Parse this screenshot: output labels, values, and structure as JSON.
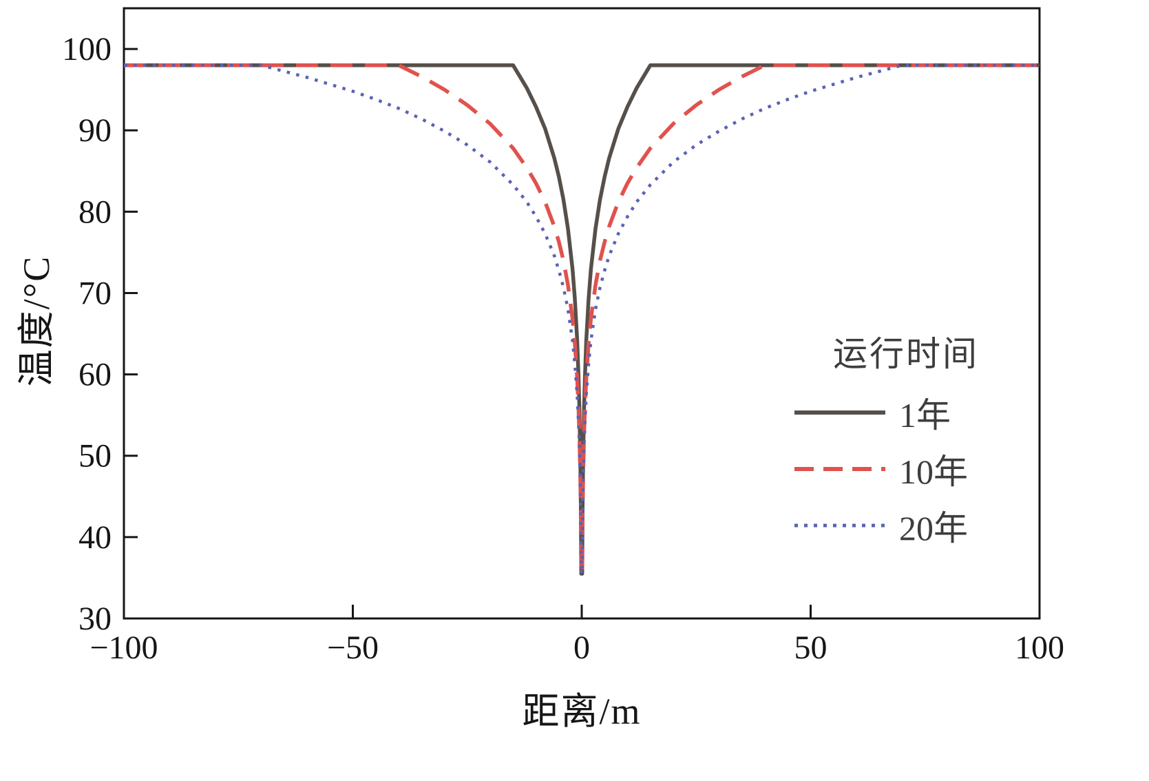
{
  "figure": {
    "background": "#ffffff",
    "frame_color": "#161616"
  },
  "chart_data": {
    "type": "line",
    "title": "",
    "xlabel": "距离/m",
    "ylabel": "温度/°C",
    "xlim": [
      -100,
      100
    ],
    "ylim": [
      30,
      105
    ],
    "grid": false,
    "legend": {
      "title": "运行时间",
      "position": "right-center",
      "entries": [
        "1年",
        "10年",
        "20年"
      ]
    },
    "x_ticks": [
      {
        "v": -100,
        "label": "−100"
      },
      {
        "v": -50,
        "label": "−50"
      },
      {
        "v": 0,
        "label": "0"
      },
      {
        "v": 50,
        "label": "50"
      },
      {
        "v": 100,
        "label": "100"
      }
    ],
    "y_ticks": [
      {
        "v": 30,
        "label": "30"
      },
      {
        "v": 40,
        "label": "40"
      },
      {
        "v": 50,
        "label": "50"
      },
      {
        "v": 60,
        "label": "60"
      },
      {
        "v": 70,
        "label": "70"
      },
      {
        "v": 80,
        "label": "80"
      },
      {
        "v": 90,
        "label": "90"
      },
      {
        "v": 100,
        "label": "100"
      }
    ],
    "x": [
      -100,
      -90,
      -80,
      -70,
      -60,
      -50,
      -45,
      -40,
      -35,
      -30,
      -25,
      -20,
      -15,
      -12,
      -10,
      -8,
      -6,
      -5,
      -4,
      -3,
      -2,
      -1.5,
      -1,
      -0.7,
      -0.5,
      -0.3,
      -0.2,
      -0.1,
      0,
      0.1,
      0.2,
      0.3,
      0.5,
      0.7,
      1,
      1.5,
      2,
      3,
      4,
      5,
      6,
      8,
      10,
      12,
      15,
      20,
      25,
      30,
      35,
      40,
      45,
      50,
      60,
      70,
      80,
      90,
      100
    ],
    "series": [
      {
        "name": "1年",
        "style": "solid",
        "color": "#57504a",
        "values": [
          98,
          98,
          98,
          98,
          98,
          98,
          98,
          98,
          98,
          98,
          98,
          98,
          98,
          95.2,
          92.9,
          90.2,
          86.6,
          84.3,
          81.5,
          77.9,
          72.9,
          69.3,
          64.2,
          59.8,
          55.6,
          49.2,
          44.2,
          35.5,
          35.5,
          35.5,
          44.2,
          49.2,
          55.6,
          59.8,
          64.2,
          69.3,
          72.9,
          77.9,
          81.5,
          84.3,
          86.6,
          90.2,
          92.9,
          95.2,
          98,
          98,
          98,
          98,
          98,
          98,
          98,
          98,
          98,
          98,
          98,
          98,
          98
        ]
      },
      {
        "name": "10年",
        "style": "dashed",
        "color": "#e0524e",
        "values": [
          98,
          98,
          98,
          98,
          98,
          98,
          98,
          98,
          96.6,
          95,
          93.1,
          90.8,
          87.8,
          85.4,
          83.5,
          81.2,
          78.2,
          76.3,
          74,
          71,
          66.8,
          63.8,
          59.5,
          55.8,
          52.3,
          47,
          42.7,
          35.5,
          35.5,
          35.5,
          42.7,
          47,
          52.3,
          55.8,
          59.5,
          63.8,
          66.8,
          71,
          74,
          76.3,
          78.2,
          81.2,
          83.5,
          85.4,
          87.8,
          90.8,
          93.1,
          95,
          96.6,
          98,
          98,
          98,
          98,
          98,
          98,
          98,
          98
        ]
      },
      {
        "name": "20年",
        "style": "dotted",
        "color": "#5a62b5",
        "values": [
          98,
          98,
          98,
          98,
          96.5,
          94.8,
          93.8,
          92.7,
          91.4,
          89.9,
          88.2,
          86.1,
          83.3,
          81.2,
          79.4,
          77.3,
          74.6,
          72.8,
          70.7,
          68,
          64.1,
          61.3,
          57.5,
          54.1,
          50.9,
          46,
          42.1,
          35.5,
          35.5,
          35.5,
          42.1,
          46,
          50.9,
          54.1,
          57.5,
          61.3,
          64.1,
          68,
          70.7,
          72.8,
          74.6,
          77.3,
          79.4,
          81.2,
          83.3,
          86.1,
          88.2,
          89.9,
          91.4,
          92.7,
          93.8,
          94.8,
          96.5,
          98,
          98,
          98,
          98
        ]
      }
    ]
  }
}
